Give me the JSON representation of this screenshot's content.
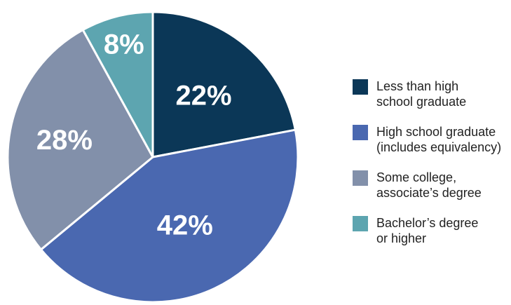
{
  "chart_data": {
    "type": "pie",
    "title": "",
    "categories": [
      "Less than high school graduate",
      "High school graduate (includes equivalency)",
      "Some college, associate’s degree",
      "Bachelor’s degree or higher"
    ],
    "values": [
      22,
      42,
      28,
      8
    ],
    "data_labels": [
      "22%",
      "42%",
      "28%",
      "8%"
    ],
    "colors": [
      "#0b3757",
      "#4a68b0",
      "#8290aa",
      "#5da5b0"
    ],
    "legend": {
      "placement": "right",
      "entries": [
        {
          "lines": [
            "Less than high",
            "school graduate"
          ]
        },
        {
          "lines": [
            "High school graduate",
            "(includes equivalency)"
          ]
        },
        {
          "lines": [
            "Some college,",
            "associate’s degree"
          ]
        },
        {
          "lines": [
            "Bachelor’s degree",
            "or higher"
          ]
        }
      ]
    }
  }
}
